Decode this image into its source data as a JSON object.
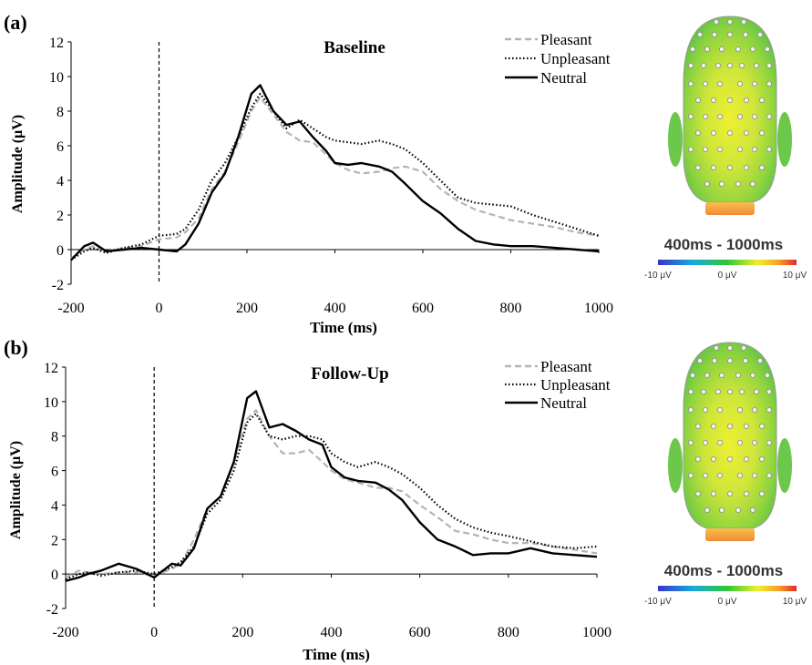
{
  "chart_data": [
    {
      "type": "line",
      "panel_label": "(a)",
      "title": "Baseline",
      "xlabel": "Time (ms)",
      "ylabel": "Amplitude (μV)",
      "xlim": [
        -200,
        1000
      ],
      "ylim": [
        -2,
        12
      ],
      "xticks": [
        "-200",
        "0",
        "200",
        "400",
        "600",
        "800",
        "1000"
      ],
      "yticks": [
        "-2",
        "0",
        "2",
        "4",
        "6",
        "8",
        "10",
        "12"
      ],
      "legend_position": "top-right",
      "grid": false,
      "series": [
        {
          "name": "Pleasant",
          "color": "#b4b4b4",
          "dash": "dashed",
          "x": [
            -200,
            -170,
            -150,
            -120,
            -80,
            -40,
            0,
            40,
            60,
            90,
            120,
            150,
            180,
            210,
            230,
            260,
            290,
            320,
            350,
            380,
            400,
            430,
            460,
            500,
            530,
            560,
            600,
            640,
            680,
            720,
            760,
            800,
            850,
            900,
            950,
            1000
          ],
          "y": [
            -0.5,
            0.0,
            0.2,
            -0.1,
            0.1,
            0.2,
            0.6,
            0.7,
            1.0,
            1.8,
            3.5,
            4.5,
            6.2,
            8.0,
            8.8,
            7.8,
            6.8,
            6.3,
            6.2,
            5.5,
            5.0,
            4.6,
            4.4,
            4.5,
            4.7,
            4.8,
            4.5,
            3.5,
            2.8,
            2.3,
            2.0,
            1.7,
            1.5,
            1.3,
            1.0,
            0.8
          ]
        },
        {
          "name": "Unpleasant",
          "color": "#000000",
          "dash": "dotted",
          "x": [
            -200,
            -170,
            -150,
            -120,
            -80,
            -40,
            0,
            40,
            60,
            90,
            120,
            150,
            180,
            210,
            230,
            260,
            290,
            320,
            350,
            380,
            400,
            430,
            460,
            500,
            530,
            560,
            600,
            640,
            680,
            720,
            760,
            800,
            850,
            900,
            950,
            1000
          ],
          "y": [
            -0.6,
            -0.1,
            0.1,
            -0.2,
            0.1,
            0.3,
            0.8,
            0.9,
            1.2,
            2.3,
            4.0,
            5.0,
            6.5,
            8.2,
            9.0,
            8.0,
            7.0,
            7.5,
            7.0,
            6.5,
            6.3,
            6.2,
            6.1,
            6.3,
            6.1,
            5.8,
            5.0,
            4.0,
            3.0,
            2.7,
            2.6,
            2.5,
            2.0,
            1.6,
            1.2,
            0.8
          ]
        },
        {
          "name": "Neutral",
          "color": "#000000",
          "dash": "solid",
          "x": [
            -200,
            -170,
            -150,
            -120,
            -80,
            -40,
            0,
            40,
            60,
            90,
            120,
            150,
            180,
            210,
            230,
            260,
            290,
            320,
            350,
            380,
            400,
            430,
            460,
            500,
            530,
            560,
            600,
            640,
            680,
            720,
            760,
            800,
            850,
            900,
            950,
            1000
          ],
          "y": [
            -0.6,
            0.2,
            0.4,
            -0.1,
            0.0,
            0.1,
            0.0,
            -0.1,
            0.3,
            1.5,
            3.3,
            4.4,
            6.5,
            9.0,
            9.5,
            8.0,
            7.2,
            7.4,
            6.5,
            5.7,
            5.0,
            4.9,
            5.0,
            4.8,
            4.5,
            3.8,
            2.8,
            2.1,
            1.2,
            0.5,
            0.3,
            0.2,
            0.2,
            0.1,
            0.0,
            -0.1
          ]
        }
      ],
      "topomap": {
        "range_label": "400ms - 1000ms",
        "scale_labels": [
          "-10 μV",
          "0 μV",
          "10 μV"
        ]
      }
    },
    {
      "type": "line",
      "panel_label": "(b)",
      "title": "Follow-Up",
      "xlabel": "Time (ms)",
      "ylabel": "Amplitude (μV)",
      "xlim": [
        -200,
        1000
      ],
      "ylim": [
        -2,
        12
      ],
      "xticks": [
        "-200",
        "0",
        "200",
        "400",
        "600",
        "800",
        "1000"
      ],
      "yticks": [
        "-2",
        "0",
        "2",
        "4",
        "6",
        "8",
        "10",
        "12"
      ],
      "legend_position": "top-right",
      "grid": false,
      "series": [
        {
          "name": "Pleasant",
          "color": "#b4b4b4",
          "dash": "dashed",
          "x": [
            -200,
            -170,
            -150,
            -120,
            -80,
            -40,
            0,
            40,
            60,
            90,
            120,
            150,
            180,
            210,
            230,
            260,
            290,
            320,
            350,
            380,
            400,
            430,
            460,
            500,
            530,
            560,
            600,
            640,
            680,
            720,
            760,
            800,
            850,
            900,
            950,
            1000
          ],
          "y": [
            -0.2,
            0.2,
            0.1,
            0.0,
            0.1,
            0.1,
            -0.1,
            0.3,
            0.6,
            2.0,
            3.8,
            4.5,
            6.5,
            9.0,
            9.5,
            8.0,
            7.0,
            7.0,
            7.2,
            6.5,
            6.0,
            5.5,
            5.3,
            5.0,
            5.0,
            4.8,
            4.0,
            3.3,
            2.5,
            2.3,
            2.0,
            1.8,
            1.8,
            1.6,
            1.4,
            1.2
          ]
        },
        {
          "name": "Unpleasant",
          "color": "#000000",
          "dash": "dotted",
          "x": [
            -200,
            -170,
            -150,
            -120,
            -80,
            -40,
            0,
            40,
            60,
            90,
            120,
            150,
            180,
            210,
            230,
            260,
            290,
            320,
            350,
            380,
            400,
            430,
            460,
            500,
            530,
            560,
            600,
            640,
            680,
            720,
            760,
            800,
            850,
            900,
            950,
            1000
          ],
          "y": [
            -0.3,
            0.0,
            0.1,
            -0.1,
            0.1,
            0.2,
            0.0,
            0.4,
            0.7,
            1.6,
            3.5,
            4.3,
            6.0,
            8.8,
            9.3,
            8.0,
            7.8,
            8.0,
            8.0,
            7.8,
            7.0,
            6.5,
            6.2,
            6.5,
            6.2,
            5.8,
            5.0,
            4.0,
            3.2,
            2.7,
            2.4,
            2.2,
            1.9,
            1.6,
            1.5,
            1.6
          ]
        },
        {
          "name": "Neutral",
          "color": "#000000",
          "dash": "solid",
          "x": [
            -200,
            -170,
            -150,
            -120,
            -80,
            -40,
            0,
            40,
            60,
            90,
            120,
            150,
            180,
            210,
            230,
            260,
            290,
            320,
            350,
            380,
            400,
            430,
            460,
            500,
            530,
            560,
            600,
            640,
            680,
            720,
            760,
            800,
            850,
            900,
            950,
            1000
          ],
          "y": [
            -0.4,
            -0.2,
            0.0,
            0.2,
            0.6,
            0.3,
            -0.2,
            0.6,
            0.5,
            1.5,
            3.8,
            4.5,
            6.5,
            10.2,
            10.6,
            8.5,
            8.7,
            8.3,
            7.8,
            7.5,
            6.2,
            5.6,
            5.4,
            5.3,
            4.9,
            4.3,
            3.0,
            2.0,
            1.6,
            1.1,
            1.2,
            1.2,
            1.5,
            1.2,
            1.1,
            1.0
          ]
        }
      ],
      "topomap": {
        "range_label": "400ms - 1000ms",
        "scale_labels": [
          "-10 μV",
          "0 μV",
          "10 μV"
        ]
      }
    }
  ]
}
